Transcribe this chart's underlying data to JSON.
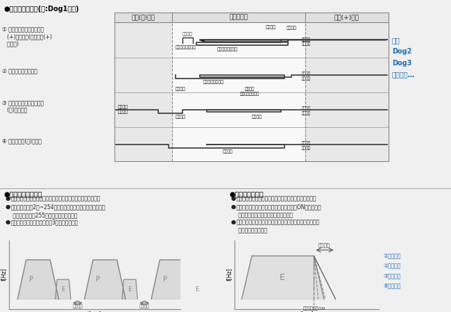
{
  "title_top": "●多功能原点复位(例:Dog1方式)",
  "bg_color": "#f0f0f0",
  "white": "#ffffff",
  "black": "#000000",
  "gray_light": "#d8d8d8",
  "gray_mid": "#c0c0c0",
  "blue": "#1e6bb8",
  "dark_blue": "#2060a0",
  "text_color": "#333333",
  "header_labels": [
    "限位(－)开关",
    "近原点开关",
    "限位(+)开关"
  ],
  "row_labels": [
    "① 起点为近原点开关和限位\n   (+)开关之间(包括限位(+)\n   开关上)",
    "② 起点为近原点开关上",
    "③ 起点为近原点开关和限位\n   (－)开关之间",
    "④ 起点为限位(－)开关上"
  ],
  "right_label": "其他\nDog2\nDog3\n原点方式…",
  "section2_title": "●重复动作输出功能",
  "section2_bullets": [
    "位置控制重复功能是按指定重复次数连续进行位置控制的功能。",
    "重复次数可以在2次~254次的范围内指定，也可以将位置控制重复次数\n   设定为255，指定为无限次重复。",
    "下图所示为位置控制重复执行3次时的动作图。"
  ],
  "section3_title": "●多功能停止方式",
  "section3_bullets": [
    "停止有多种方式，如系统停止、紧急停止、减速停止等。",
    "下图所示为紧急停止，将紧急停止触点置于ON时，停止已启动的动作，\n   停止对应轴的脉冲输出。",
    "按编程软件的位置控制参数设定菜单中设定的紧急停止减速时间进行减速停止。"
  ],
  "stop_legend": [
    "①系统停止",
    "②紧急停止",
    "③限位停止",
    "④减速停止"
  ]
}
